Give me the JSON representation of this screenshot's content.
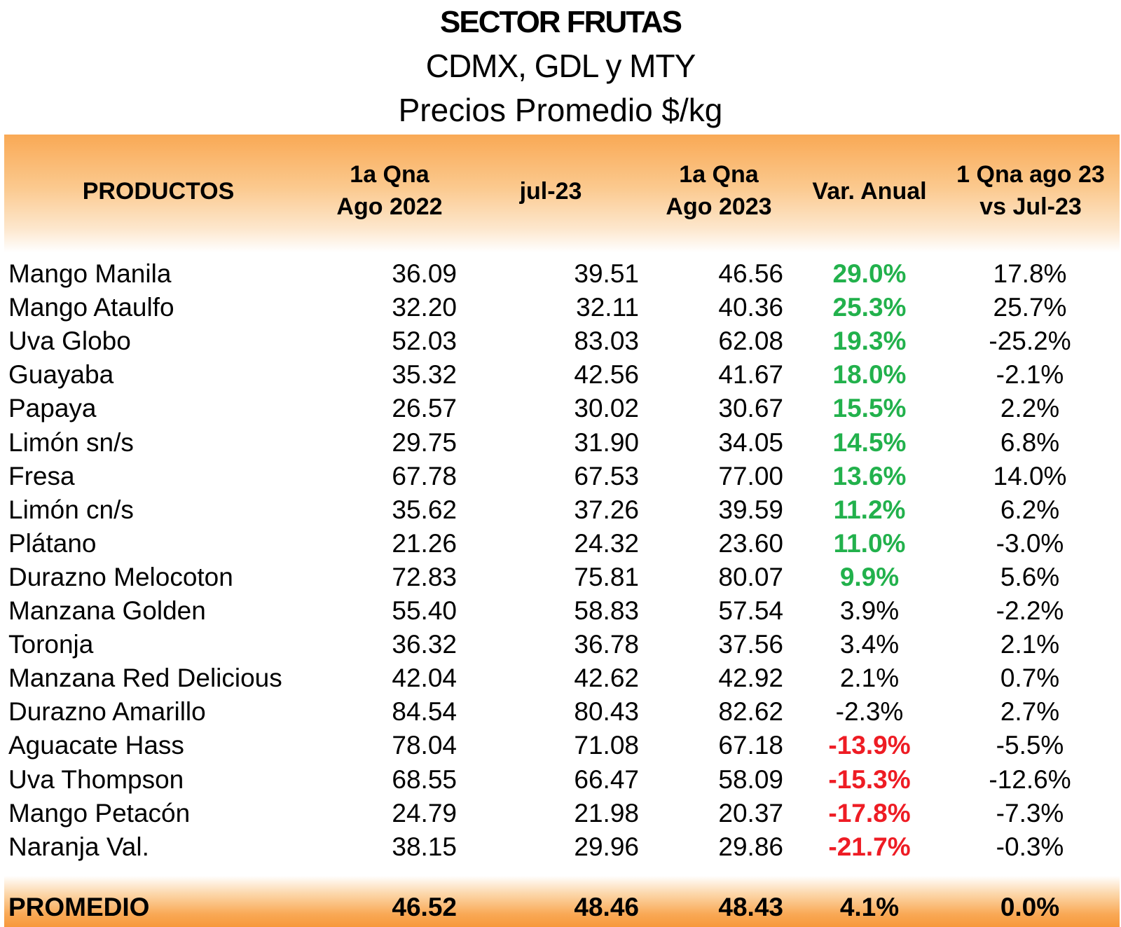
{
  "title": "SECTOR FRUTAS",
  "subtitle1": "CDMX, GDL y MTY",
  "subtitle2": "Precios Promedio $/kg",
  "headers": {
    "productos": "PRODUCTOS",
    "col1_l1": "1a Qna",
    "col1_l2": "Ago 2022",
    "col2": "jul-23",
    "col3_l1": "1a Qna",
    "col3_l2": "Ago 2023",
    "col4": "Var. Anual",
    "col5_l1": "1 Qna ago 23",
    "col5_l2": "vs Jul-23"
  },
  "colors": {
    "positive": "#22b14c",
    "negative": "#ee1c24",
    "accent": "#f9a955"
  },
  "rows": [
    {
      "producto": "Mango Manila",
      "ago22": "36.09",
      "jul23": "39.51",
      "ago23": "46.56",
      "var": "29.0%",
      "qna": "17.8%",
      "flag": "pos"
    },
    {
      "producto": "Mango Ataulfo",
      "ago22": "32.20",
      "jul23": "32.11",
      "ago23": "40.36",
      "var": "25.3%",
      "qna": "25.7%",
      "flag": "pos"
    },
    {
      "producto": "Uva Globo",
      "ago22": "52.03",
      "jul23": "83.03",
      "ago23": "62.08",
      "var": "19.3%",
      "qna": "-25.2%",
      "flag": "pos"
    },
    {
      "producto": "Guayaba",
      "ago22": "35.32",
      "jul23": "42.56",
      "ago23": "41.67",
      "var": "18.0%",
      "qna": "-2.1%",
      "flag": "pos"
    },
    {
      "producto": "Papaya",
      "ago22": "26.57",
      "jul23": "30.02",
      "ago23": "30.67",
      "var": "15.5%",
      "qna": "2.2%",
      "flag": "pos"
    },
    {
      "producto": "Limón sn/s",
      "ago22": "29.75",
      "jul23": "31.90",
      "ago23": "34.05",
      "var": "14.5%",
      "qna": "6.8%",
      "flag": "pos"
    },
    {
      "producto": "Fresa",
      "ago22": "67.78",
      "jul23": "67.53",
      "ago23": "77.00",
      "var": "13.6%",
      "qna": "14.0%",
      "flag": "pos"
    },
    {
      "producto": "Limón cn/s",
      "ago22": "35.62",
      "jul23": "37.26",
      "ago23": "39.59",
      "var": "11.2%",
      "qna": "6.2%",
      "flag": "pos"
    },
    {
      "producto": "Plátano",
      "ago22": "21.26",
      "jul23": "24.32",
      "ago23": "23.60",
      "var": "11.0%",
      "qna": "-3.0%",
      "flag": "pos"
    },
    {
      "producto": "Durazno Melocoton",
      "ago22": "72.83",
      "jul23": "75.81",
      "ago23": "80.07",
      "var": "9.9%",
      "qna": "5.6%",
      "flag": "pos"
    },
    {
      "producto": "Manzana Golden",
      "ago22": "55.40",
      "jul23": "58.83",
      "ago23": "57.54",
      "var": "3.9%",
      "qna": "-2.2%",
      "flag": ""
    },
    {
      "producto": "Toronja",
      "ago22": "36.32",
      "jul23": "36.78",
      "ago23": "37.56",
      "var": "3.4%",
      "qna": "2.1%",
      "flag": ""
    },
    {
      "producto": "Manzana Red Delicious",
      "ago22": "42.04",
      "jul23": "42.62",
      "ago23": "42.92",
      "var": "2.1%",
      "qna": "0.7%",
      "flag": ""
    },
    {
      "producto": "Durazno Amarillo",
      "ago22": "84.54",
      "jul23": "80.43",
      "ago23": "82.62",
      "var": "-2.3%",
      "qna": "2.7%",
      "flag": ""
    },
    {
      "producto": "Aguacate Hass",
      "ago22": "78.04",
      "jul23": "71.08",
      "ago23": "67.18",
      "var": "-13.9%",
      "qna": "-5.5%",
      "flag": "neg"
    },
    {
      "producto": "Uva Thompson",
      "ago22": "68.55",
      "jul23": "66.47",
      "ago23": "58.09",
      "var": "-15.3%",
      "qna": "-12.6%",
      "flag": "neg"
    },
    {
      "producto": "Mango Petacón",
      "ago22": "24.79",
      "jul23": "21.98",
      "ago23": "20.37",
      "var": "-17.8%",
      "qna": "-7.3%",
      "flag": "neg"
    },
    {
      "producto": "Naranja Val.",
      "ago22": "38.15",
      "jul23": "29.96",
      "ago23": "29.86",
      "var": "-21.7%",
      "qna": "-0.3%",
      "flag": "neg"
    }
  ],
  "promedio": {
    "label": "PROMEDIO",
    "ago22": "46.52",
    "jul23": "48.46",
    "ago23": "48.43",
    "var": "4.1%",
    "qna": "0.0%"
  }
}
